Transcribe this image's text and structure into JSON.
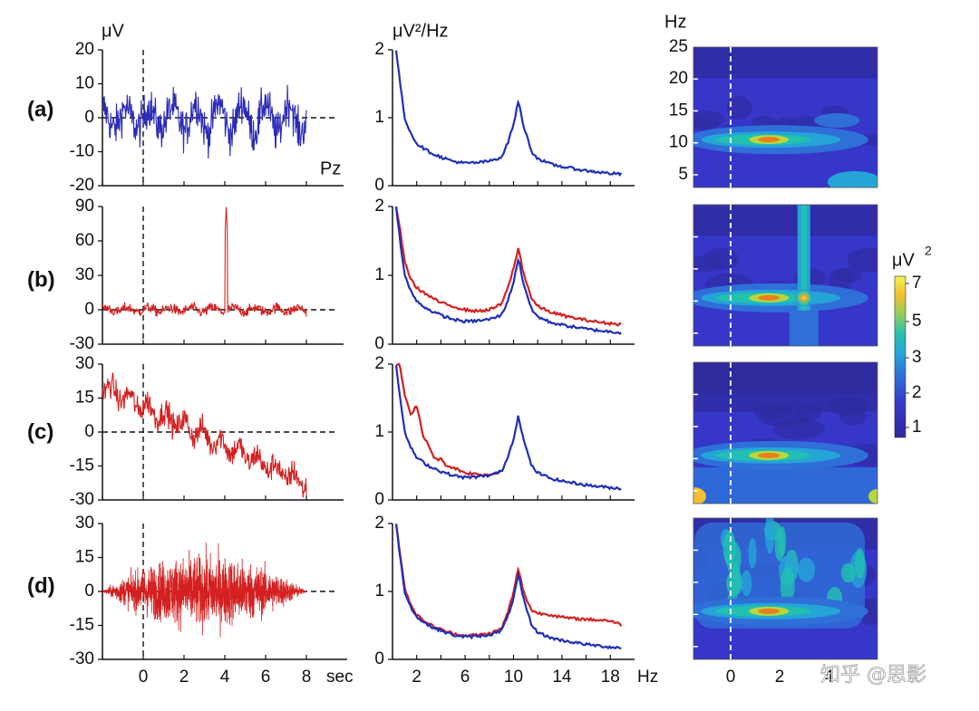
{
  "figure": {
    "row_labels": [
      "(a)",
      "(b)",
      "(c)",
      "(d)"
    ],
    "watermark": "知乎 @思影"
  },
  "chart_data": [
    {
      "type": "line",
      "panel": "time-series",
      "ylabel": "μV",
      "xlabel": "sec",
      "channel_label": "Pz",
      "x_ticks": [
        "0",
        "2",
        "4",
        "6",
        "8"
      ],
      "xlim": [
        -2,
        10
      ],
      "rows": [
        {
          "row": "(a)",
          "ylim": [
            -20,
            20
          ],
          "y_ticks": [
            "20",
            "10",
            "0",
            "-10",
            "-20"
          ],
          "color": "#2a2ab8",
          "description": "clean EEG"
        },
        {
          "row": "(b)",
          "ylim": [
            -30,
            90
          ],
          "y_ticks": [
            "90",
            "60",
            "30",
            "0",
            "-30"
          ],
          "color": "#d42020",
          "description": "spike artifact near 4.1 sec reaching 90"
        },
        {
          "row": "(c)",
          "ylim": [
            -30,
            30
          ],
          "y_ticks": [
            "30",
            "15",
            "0",
            "-15",
            "-30"
          ],
          "color": "#d42020",
          "description": "linear drift from ~20 to ~-25"
        },
        {
          "row": "(d)",
          "ylim": [
            -30,
            30
          ],
          "y_ticks": [
            "30",
            "15",
            "0",
            "-15",
            "-30"
          ],
          "color": "#d42020",
          "description": "high-frequency noise burst amplitude ~±20"
        }
      ]
    },
    {
      "type": "line",
      "panel": "power-spectrum",
      "ylabel": "μV²/Hz",
      "xlabel": "Hz",
      "x_ticks": [
        "2",
        "6",
        "10",
        "14",
        "18"
      ],
      "xlim": [
        0,
        20
      ],
      "ylim": [
        0,
        2
      ],
      "y_ticks": [
        "2",
        "1",
        "0"
      ],
      "series": [
        {
          "color": "#1f2fb8",
          "x": [
            0.3,
            0.6,
            1,
            1.5,
            2,
            3,
            4,
            5,
            6,
            7,
            8,
            9,
            9.5,
            10,
            10.4,
            10.8,
            11.5,
            12,
            13,
            14,
            15,
            16,
            17,
            18,
            19
          ],
          "y": [
            2.0,
            1.55,
            1.0,
            0.78,
            0.62,
            0.5,
            0.42,
            0.36,
            0.33,
            0.34,
            0.36,
            0.42,
            0.62,
            0.9,
            1.25,
            0.9,
            0.5,
            0.4,
            0.32,
            0.28,
            0.25,
            0.22,
            0.2,
            0.18,
            0.17
          ]
        },
        {
          "row": "(b)",
          "color": "#d42020",
          "x": [
            0.3,
            0.6,
            1,
            1.5,
            2,
            3,
            4,
            5,
            6,
            7,
            8,
            9,
            9.5,
            10,
            10.4,
            10.8,
            11.5,
            12,
            13,
            14,
            15,
            16,
            17,
            18,
            19
          ],
          "y": [
            2.0,
            1.7,
            1.2,
            0.95,
            0.82,
            0.7,
            0.6,
            0.55,
            0.5,
            0.48,
            0.5,
            0.58,
            0.8,
            1.1,
            1.4,
            1.05,
            0.66,
            0.55,
            0.47,
            0.42,
            0.38,
            0.35,
            0.32,
            0.3,
            0.29
          ]
        },
        {
          "row": "(c)",
          "color": "#d42020",
          "x": [
            0.3,
            0.6,
            1,
            1.5,
            2,
            2.5,
            3,
            3.5,
            4,
            4.5,
            5,
            6,
            7,
            8,
            9
          ],
          "y": [
            2.0,
            2.0,
            1.55,
            1.25,
            1.4,
            0.95,
            0.8,
            0.6,
            0.6,
            0.5,
            0.48,
            0.4,
            0.38,
            0.37,
            0.42
          ]
        },
        {
          "row": "(d)",
          "color": "#d42020",
          "x": [
            0.3,
            0.6,
            1,
            1.5,
            2,
            3,
            4,
            5,
            6,
            7,
            8,
            9,
            9.5,
            10,
            10.4,
            10.8,
            11.5,
            12,
            13,
            14,
            15,
            16,
            17,
            18,
            19
          ],
          "y": [
            2.0,
            1.6,
            1.05,
            0.82,
            0.65,
            0.52,
            0.44,
            0.38,
            0.35,
            0.36,
            0.38,
            0.45,
            0.68,
            0.98,
            1.35,
            1.0,
            0.72,
            0.68,
            0.66,
            0.62,
            0.6,
            0.59,
            0.58,
            0.57,
            0.5
          ]
        }
      ]
    },
    {
      "type": "heatmap",
      "panel": "time-frequency",
      "ylabel": "Hz",
      "y_ticks": [
        "25",
        "20",
        "15",
        "10",
        "5"
      ],
      "ylim": [
        3,
        25
      ],
      "x_ticks": [
        "0",
        "2",
        "4"
      ],
      "colorbar": {
        "label": "μV",
        "label_sup": "2",
        "ticks": [
          "7",
          "5",
          "3",
          "2",
          "1"
        ],
        "range": [
          1,
          7
        ]
      },
      "colors": [
        "#2e2a9a",
        "#3636c8",
        "#2f6fd8",
        "#25a4d8",
        "#22c0b0",
        "#5cc878",
        "#b9d640",
        "#f0c030",
        "#e88020"
      ]
    }
  ]
}
